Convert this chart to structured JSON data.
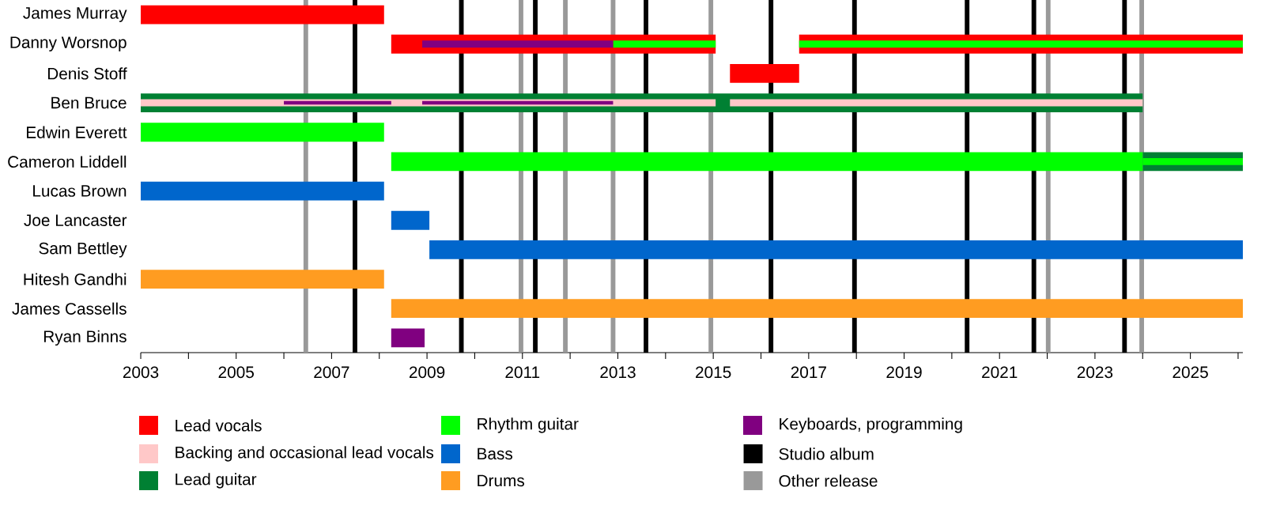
{
  "chart_data": {
    "type": "bar",
    "orientation": "horizontal",
    "legend": "bottom",
    "categories": [
      "James Murray",
      "Danny Worsnop",
      "Denis Stoff",
      "Ben Bruce",
      "Edwin Everett",
      "Cameron Liddell",
      "Lucas Brown",
      "Joe Lancaster",
      "Sam Bettley",
      "Hitesh Gandhi",
      "James Cassells",
      "Ryan Binns"
    ],
    "xlim": [
      2003,
      2026.1
    ],
    "xticks": [
      2003,
      {
        "value": 2004,
        "label": null
      },
      2005,
      {
        "value": 2006,
        "label": null
      },
      2007,
      {
        "value": 2008,
        "label": null
      },
      2009,
      {
        "value": 2010,
        "label": null
      },
      2011,
      {
        "value": 2012,
        "label": null
      },
      2013,
      {
        "value": 2014,
        "label": null
      },
      2015,
      {
        "value": 2016,
        "label": null
      },
      2017,
      {
        "value": 2018,
        "label": null
      },
      2019,
      {
        "value": 2020,
        "label": null
      },
      2021,
      {
        "value": 2022,
        "label": null
      },
      2023,
      {
        "value": 2024,
        "label": null
      },
      2025,
      {
        "value": 2026,
        "label": null
      }
    ],
    "series": [
      {
        "name": "Lead vocals",
        "color": "#ff0000",
        "base": [
          2003,
          2008.25,
          2015.35,
          null,
          null,
          null,
          null,
          null,
          null,
          null,
          null,
          null
        ],
        "values": [
          5.1,
          6.8,
          1.45,
          null,
          null,
          null,
          null,
          null,
          null,
          null,
          null,
          null
        ]
      },
      {
        "name": "Backing and occasional lead vocals",
        "color": "#ffc8c8",
        "base": [
          null,
          null,
          null,
          2003,
          null,
          null,
          null,
          null,
          null,
          null,
          null,
          null
        ],
        "values": [
          null,
          null,
          null,
          12.05,
          null,
          null,
          null,
          null,
          null,
          null,
          null,
          null
        ]
      },
      {
        "name": "Lead guitar",
        "color": "#008033",
        "base": [
          null,
          null,
          null,
          2003,
          null,
          2024.0,
          null,
          null,
          null,
          null,
          null,
          null
        ],
        "values": [
          null,
          null,
          null,
          21.0,
          null,
          2.1,
          null,
          null,
          null,
          null,
          null,
          null
        ]
      },
      {
        "name": "Rhythm guitar",
        "color": "#00ff00",
        "base": [
          null,
          2012.9,
          null,
          null,
          2003,
          2008.25,
          null,
          null,
          null,
          null,
          null,
          null
        ],
        "values": [
          null,
          2.15,
          null,
          null,
          5.1,
          15.75,
          null,
          null,
          null,
          null,
          null,
          null
        ]
      },
      {
        "name": "Bass",
        "color": "#0066cc",
        "base": [
          null,
          null,
          null,
          null,
          null,
          null,
          2003,
          2008.25,
          2009.05,
          null,
          null,
          null
        ],
        "values": [
          null,
          null,
          null,
          null,
          null,
          null,
          5.1,
          0.8,
          17.05,
          null,
          null,
          null
        ]
      },
      {
        "name": "Drums",
        "color": "#ff9c21",
        "base": [
          null,
          null,
          null,
          null,
          null,
          null,
          null,
          null,
          null,
          2003,
          2008.25,
          null
        ],
        "values": [
          null,
          null,
          null,
          null,
          null,
          null,
          null,
          null,
          null,
          5.1,
          17.85,
          null
        ]
      },
      {
        "name": "Keyboards, programming",
        "color": "#800080",
        "base": [
          null,
          2008.9,
          null,
          2006.0,
          null,
          null,
          null,
          null,
          null,
          null,
          null,
          2008.25
        ],
        "values": [
          null,
          4.0,
          null,
          2.25,
          null,
          null,
          null,
          null,
          null,
          null,
          null,
          0.7
        ]
      },
      {
        "color": "#ff0000",
        "base": [
          null,
          2016.8,
          null,
          null,
          null,
          null,
          null,
          null,
          null,
          null,
          null,
          null
        ],
        "values": [
          null,
          9.3,
          null,
          null,
          null,
          null,
          null,
          null,
          null,
          null,
          null,
          null
        ]
      },
      {
        "color": "#ffc8c8",
        "base": [
          null,
          null,
          null,
          2015.35,
          null,
          null,
          null,
          null,
          null,
          null,
          null,
          null
        ],
        "values": [
          null,
          null,
          null,
          8.65,
          null,
          null,
          null,
          null,
          null,
          null,
          null,
          null
        ]
      },
      {
        "color": "#00ff00",
        "base": [
          null,
          2016.8,
          null,
          null,
          null,
          2024.0,
          null,
          null,
          null,
          null,
          null,
          null
        ],
        "values": [
          null,
          9.3,
          null,
          null,
          null,
          2.1,
          null,
          null,
          null,
          null,
          null,
          null
        ]
      },
      {
        "color": "#800080",
        "base": [
          null,
          null,
          null,
          2008.9,
          null,
          null,
          null,
          null,
          null,
          null,
          null,
          null
        ],
        "values": [
          null,
          null,
          null,
          4.0,
          null,
          null,
          null,
          null,
          null,
          null,
          null,
          null
        ]
      }
    ],
    "ref_lines": [
      {
        "axis": "x",
        "value": 2007.49,
        "color": "#000000"
      },
      {
        "axis": "x",
        "value": 2009.72,
        "color": "#000000"
      },
      {
        "axis": "x",
        "value": 2011.27,
        "color": "#000000"
      },
      {
        "axis": "x",
        "value": 2013.59,
        "color": "#000000"
      },
      {
        "axis": "x",
        "value": 2016.21,
        "color": "#000000"
      },
      {
        "axis": "x",
        "value": 2017.96,
        "color": "#000000"
      },
      {
        "axis": "x",
        "value": 2020.32,
        "color": "#000000"
      },
      {
        "axis": "x",
        "value": 2021.72,
        "color": "#000000"
      },
      {
        "axis": "x",
        "value": 2023.62,
        "color": "#000000"
      },
      {
        "axis": "x",
        "value": 2006.46,
        "color": "#999999"
      },
      {
        "axis": "x",
        "value": 2010.97,
        "color": "#999999"
      },
      {
        "axis": "x",
        "value": 2011.9,
        "color": "#999999"
      },
      {
        "axis": "x",
        "value": 2012.9,
        "color": "#999999"
      },
      {
        "axis": "x",
        "value": 2014.95,
        "color": "#999999"
      },
      {
        "axis": "x",
        "value": 2022.02,
        "color": "#999999"
      },
      {
        "axis": "x",
        "value": 2023.98,
        "color": "#999999"
      }
    ],
    "annotations": [
      "Studio album",
      "Other release"
    ]
  }
}
